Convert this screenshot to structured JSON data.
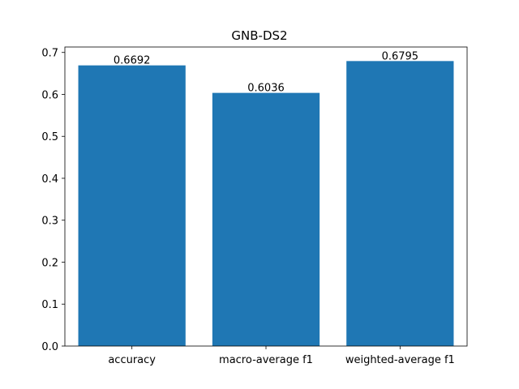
{
  "chart_data": {
    "type": "bar",
    "title": "GNB-DS2",
    "xlabel": "",
    "ylabel": "",
    "categories": [
      "accuracy",
      "macro-average f1",
      "weighted-average f1"
    ],
    "values": [
      0.6692,
      0.6036,
      0.6795
    ],
    "value_labels": [
      "0.6692",
      "0.6036",
      "0.6795"
    ],
    "ylim": [
      0,
      0.713
    ],
    "yticks": [
      0.0,
      0.1,
      0.2,
      0.3,
      0.4,
      0.5,
      0.6,
      0.7
    ],
    "ytick_labels": [
      "0.0",
      "0.1",
      "0.2",
      "0.3",
      "0.4",
      "0.5",
      "0.6",
      "0.7"
    ],
    "grid": false,
    "bar_color": "#1f77b4"
  }
}
